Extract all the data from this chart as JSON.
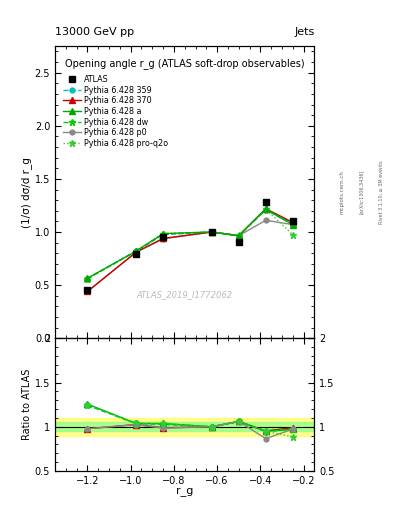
{
  "title_top": "13000 GeV pp",
  "title_right": "Jets",
  "plot_title": "Opening angle r_g (ATLAS soft-drop observables)",
  "ylabel_main": "(1/σ) dσ/d r_g",
  "ylabel_ratio": "Ratio to ATLAS",
  "xlabel": "r_g",
  "watermark": "ATLAS_2019_I1772062",
  "rivet_label": "Rivet 3.1.10, ≥ 3M events",
  "arxiv_label": "[arXiv:1306.3436]",
  "mcplots_label": "mcplots.cern.ch",
  "x_values": [
    -1.2,
    -0.975,
    -0.85,
    -0.625,
    -0.5,
    -0.375,
    -0.25
  ],
  "ylim_main": [
    0.0,
    2.75
  ],
  "ylim_ratio": [
    0.5,
    2.0
  ],
  "xlim": [
    -1.35,
    -0.15
  ],
  "series": {
    "ATLAS": {
      "y": [
        0.45,
        0.79,
        0.95,
        1.0,
        0.91,
        1.28,
        1.1
      ],
      "color": "#000000",
      "marker": "s",
      "markersize": 5,
      "linestyle": "none",
      "zorder": 10
    },
    "Pythia 6.428 359": {
      "y": [
        0.56,
        0.82,
        0.975,
        1.0,
        0.965,
        1.21,
        1.07
      ],
      "color": "#00bfbf",
      "marker": "o",
      "markersize": 3.5,
      "linestyle": "--",
      "zorder": 5
    },
    "Pythia 6.428 370": {
      "y": [
        0.44,
        0.81,
        0.94,
        1.0,
        0.965,
        1.22,
        1.09
      ],
      "color": "#cc0000",
      "marker": "^",
      "markersize": 4,
      "linestyle": "-",
      "zorder": 5
    },
    "Pythia 6.428 a": {
      "y": [
        0.565,
        0.82,
        0.985,
        1.0,
        0.965,
        1.215,
        1.07
      ],
      "color": "#00aa00",
      "marker": "^",
      "markersize": 4,
      "linestyle": "-",
      "zorder": 6
    },
    "Pythia 6.428 dw": {
      "y": [
        0.56,
        0.82,
        0.98,
        1.0,
        0.965,
        1.215,
        1.07
      ],
      "color": "#00cc00",
      "marker": "*",
      "markersize": 5,
      "linestyle": "--",
      "zorder": 5
    },
    "Pythia 6.428 p0": {
      "y": [
        0.44,
        0.81,
        0.935,
        1.0,
        0.965,
        1.11,
        1.07
      ],
      "color": "#888888",
      "marker": "o",
      "markersize": 3.5,
      "linestyle": "-",
      "zorder": 4
    },
    "Pythia 6.428 pro-q2o": {
      "y": [
        0.56,
        0.82,
        0.985,
        1.0,
        0.97,
        1.215,
        0.975
      ],
      "color": "#33cc33",
      "marker": "*",
      "markersize": 5,
      "linestyle": ":",
      "zorder": 5
    }
  },
  "ratio": {
    "Pythia 6.428 359": [
      1.244,
      1.038,
      1.026,
      1.0,
      1.06,
      0.945,
      0.973
    ],
    "Pythia 6.428 370": [
      0.978,
      1.025,
      0.989,
      1.0,
      1.06,
      0.953,
      0.99
    ],
    "Pythia 6.428 a": [
      1.256,
      1.038,
      1.037,
      1.0,
      1.06,
      0.949,
      0.973
    ],
    "Pythia 6.428 dw": [
      1.244,
      1.038,
      1.032,
      1.0,
      1.06,
      0.949,
      0.973
    ],
    "Pythia 6.428 p0": [
      0.978,
      1.025,
      0.984,
      1.0,
      1.06,
      0.867,
      0.973
    ],
    "Pythia 6.428 pro-q2o": [
      1.244,
      1.038,
      1.037,
      1.0,
      1.066,
      0.949,
      0.886
    ]
  },
  "ratio_series_info": {
    "Pythia 6.428 359": {
      "color": "#00bfbf",
      "marker": "o",
      "markersize": 3.5,
      "linestyle": "--"
    },
    "Pythia 6.428 370": {
      "color": "#cc0000",
      "marker": "^",
      "markersize": 4,
      "linestyle": "-"
    },
    "Pythia 6.428 a": {
      "color": "#00aa00",
      "marker": "^",
      "markersize": 4,
      "linestyle": "-"
    },
    "Pythia 6.428 dw": {
      "color": "#00cc00",
      "marker": "*",
      "markersize": 5,
      "linestyle": "--"
    },
    "Pythia 6.428 p0": {
      "color": "#888888",
      "marker": "o",
      "markersize": 3.5,
      "linestyle": "-"
    },
    "Pythia 6.428 pro-q2o": {
      "color": "#33cc33",
      "marker": "*",
      "markersize": 5,
      "linestyle": ":"
    }
  },
  "band_yellow": [
    0.9,
    1.1
  ],
  "band_green": [
    0.95,
    1.05
  ],
  "legend_labels": [
    "ATLAS",
    "Pythia 6.428 359",
    "Pythia 6.428 370",
    "Pythia 6.428 a",
    "Pythia 6.428 dw",
    "Pythia 6.428 p0",
    "Pythia 6.428 pro-q2o"
  ]
}
